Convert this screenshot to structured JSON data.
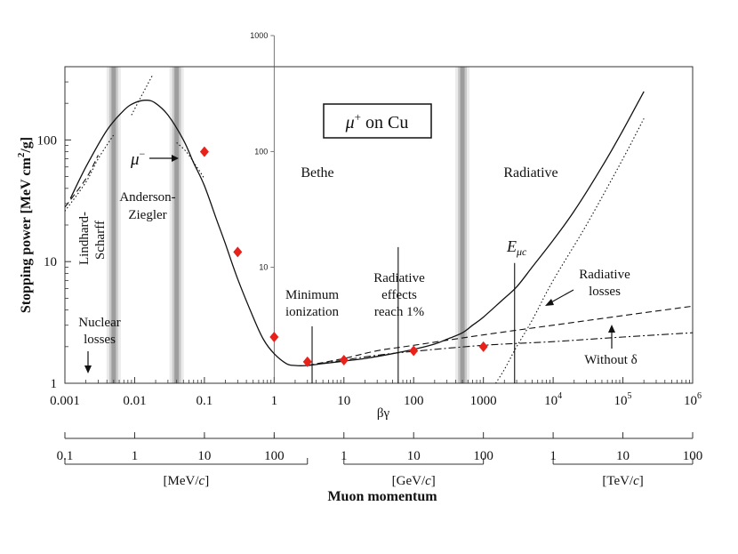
{
  "chart_data": {
    "type": "line",
    "title": "μ⁺ on Cu",
    "title_parts": {
      "symbol": "μ",
      "sup": "+",
      "text": " on Cu"
    },
    "xscale": "log",
    "yscale": "log",
    "xlabel": "βγ",
    "ylabel": "Stopping power [MeV cm²/g]",
    "ylabel_parts": {
      "main": "Stopping power [MeV cm",
      "sup": "2",
      "end": "/g]"
    },
    "xlim": [
      0.001,
      1000000
    ],
    "ylim": [
      1,
      400
    ],
    "x_ticks": [
      {
        "value": 0.001,
        "label": "0.001"
      },
      {
        "value": 0.01,
        "label": "0.01"
      },
      {
        "value": 0.1,
        "label": "0.1"
      },
      {
        "value": 1,
        "label": "1"
      },
      {
        "value": 10,
        "label": "10"
      },
      {
        "value": 100,
        "label": "100"
      },
      {
        "value": 1000,
        "label": "1000"
      },
      {
        "value": 10000,
        "label": "10",
        "sup": "4"
      },
      {
        "value": 100000,
        "label": "10",
        "sup": "5"
      },
      {
        "value": 1000000,
        "label": "10",
        "sup": "6"
      }
    ],
    "y_ticks": [
      {
        "value": 1,
        "label": "1"
      },
      {
        "value": 10,
        "label": "10"
      },
      {
        "value": 100,
        "label": "100"
      }
    ],
    "inner_axis": {
      "x": 1,
      "ylim": [
        1,
        1000
      ],
      "ticks": [
        {
          "value": 10,
          "label": "10"
        },
        {
          "value": 100,
          "label": "100"
        },
        {
          "value": 1000,
          "label": "1000"
        }
      ]
    },
    "momentum_axis": {
      "label": "Muon momentum",
      "main_ticks": [
        0.1,
        1,
        10,
        100
      ],
      "segments": [
        {
          "unit": "[MeV/c]",
          "unit_plain": "[MeV/",
          "unit_italic": "c",
          "unit_end": "]",
          "x_range": [
            0.001,
            3
          ],
          "ticks": [
            {
              "value": 0.001,
              "label": "0.1"
            },
            {
              "value": 0.01,
              "label": "1"
            },
            {
              "value": 0.1,
              "label": "10"
            },
            {
              "value": 1,
              "label": "100"
            }
          ]
        },
        {
          "unit": "[GeV/c]",
          "unit_plain": "[GeV/",
          "unit_italic": "c",
          "unit_end": "]",
          "x_range": [
            10,
            1000
          ],
          "ticks": [
            {
              "value": 10,
              "label": "1"
            },
            {
              "value": 100,
              "label": "10"
            },
            {
              "value": 1000,
              "label": "100"
            }
          ]
        },
        {
          "unit": "[TeV/c]",
          "unit_plain": "[TeV/",
          "unit_italic": "c",
          "unit_end": "]",
          "x_range": [
            10000,
            1000000
          ],
          "ticks": [
            {
              "value": 10000,
              "label": "1"
            },
            {
              "value": 100000,
              "label": "10"
            },
            {
              "value": 1000000,
              "label": "100"
            }
          ]
        }
      ]
    },
    "region_boundaries": [
      0.005,
      0.04,
      500
    ],
    "region_labels": [
      {
        "text": "Bethe",
        "x": 3.5,
        "y": 70
      },
      {
        "text": "Radiative",
        "x": 4000,
        "y": 70
      }
    ],
    "series": [
      {
        "name": "Total stopping power",
        "style": "solid",
        "x": [
          0.0012,
          0.002,
          0.004,
          0.007,
          0.01,
          0.015,
          0.02,
          0.03,
          0.05,
          0.07,
          0.1,
          0.15,
          0.2,
          0.3,
          0.5,
          0.7,
          1,
          1.5,
          2,
          3,
          5,
          10,
          20,
          50,
          100,
          200,
          300,
          500,
          700,
          1000,
          2000,
          3000,
          5000,
          10000,
          20000,
          50000,
          100000,
          200000
        ],
        "y": [
          33,
          60,
          120,
          175,
          202,
          212,
          200,
          160,
          100,
          65,
          42,
          22,
          14,
          7.2,
          3.5,
          2.3,
          1.75,
          1.45,
          1.4,
          1.4,
          1.45,
          1.52,
          1.6,
          1.75,
          1.9,
          2.1,
          2.3,
          2.6,
          3,
          3.5,
          5,
          6.2,
          9,
          15,
          26,
          60,
          120,
          250
        ]
      },
      {
        "name": "Anderson-Ziegler low-energy fit",
        "style": "dotted",
        "x": [
          0.009,
          0.012,
          0.015,
          0.018
        ],
        "y": [
          160,
          220,
          280,
          340
        ]
      },
      {
        "name": "Anderson-Ziegler (negative muon)",
        "style": "dotted",
        "x": [
          0.04,
          0.055,
          0.075,
          0.1
        ],
        "y": [
          95,
          80,
          62,
          48
        ]
      },
      {
        "name": "Lindhard-Scharff",
        "style": "dotted",
        "x": [
          0.001,
          0.002,
          0.003,
          0.005
        ],
        "y": [
          26,
          45,
          70,
          110
        ]
      },
      {
        "name": "Lindhard-Scharff (dashed)",
        "style": "dashed",
        "x": [
          0.001,
          0.002,
          0.003
        ],
        "y": [
          28,
          48,
          75
        ]
      },
      {
        "name": "Radiative losses",
        "style": "dotted",
        "x": [
          1500,
          2000,
          3000,
          5000,
          10000,
          30000,
          100000,
          200000
        ],
        "y": [
          1,
          1.3,
          2,
          3.3,
          7,
          20,
          70,
          150
        ]
      },
      {
        "name": "Ionization with δ",
        "style": "dashed",
        "x": [
          3,
          10,
          30,
          100,
          1000,
          10000,
          100000,
          1000000
        ],
        "y": [
          1.4,
          1.6,
          1.85,
          2.05,
          2.5,
          3,
          3.6,
          4.3
        ]
      },
      {
        "name": "Without δ",
        "style": "dashdot",
        "x": [
          3,
          10,
          30,
          100,
          1000,
          10000,
          100000,
          1000000
        ],
        "y": [
          1.4,
          1.55,
          1.7,
          1.83,
          2.05,
          2.2,
          2.4,
          2.6
        ]
      }
    ],
    "markers": {
      "name": "data points",
      "color": "#e8211b",
      "x": [
        0.1,
        0.3,
        1,
        3,
        10,
        100,
        1000
      ],
      "y": [
        80,
        12,
        2.4,
        1.5,
        1.55,
        1.85,
        2
      ]
    },
    "vertical_markers": [
      {
        "name": "minimum-ionization",
        "x": 3.5
      },
      {
        "name": "radiative-1-percent",
        "x": 60
      },
      {
        "name": "critical-energy",
        "x": 2800
      }
    ],
    "annotations": [
      {
        "lines": [
          "Anderson-",
          "Ziegler"
        ],
        "name": "anderson-ziegler-label"
      },
      {
        "lines": [
          "Lindhard-",
          "Scharff"
        ],
        "name": "lindhard-scharff-label"
      },
      {
        "lines": [
          "Nuclear",
          "losses"
        ],
        "name": "nuclear-losses-label"
      },
      {
        "lines": [
          "Minimum",
          "ionization"
        ],
        "name": "minimum-ionization-label"
      },
      {
        "lines": [
          "Radiative",
          "effects",
          "reach 1%"
        ],
        "name": "radiative-effects-label"
      },
      {
        "lines": [
          "Radiative",
          "losses"
        ],
        "name": "radiative-losses-label"
      },
      {
        "lines": [
          "Without δ"
        ],
        "name": "without-delta-label"
      }
    ],
    "mu_minus_label": {
      "symbol": "μ",
      "sup": "−"
    },
    "critical_energy_label": {
      "symbol": "E",
      "sub": "μc"
    }
  }
}
